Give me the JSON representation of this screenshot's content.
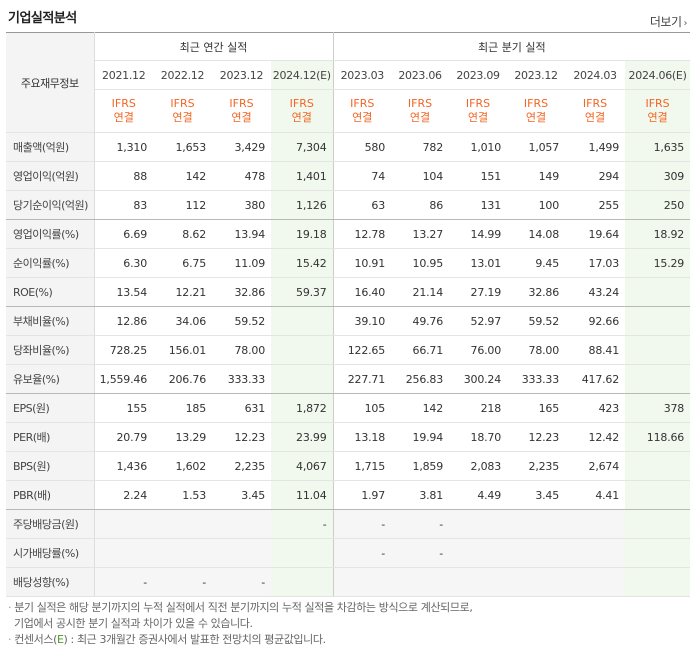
{
  "title": "기업실적분석",
  "more_label": "더보기",
  "header": {
    "row_label": "주요재무정보",
    "annual_group": "최근 연간 실적",
    "quarter_group": "최근 분기 실적",
    "periods": [
      "2021.12",
      "2022.12",
      "2023.12",
      "2024.12(E)",
      "2023.03",
      "2023.06",
      "2023.09",
      "2023.12",
      "2024.03",
      "2024.06(E)"
    ],
    "ifrs": "IFRS",
    "basis": "연결"
  },
  "rows": [
    {
      "label": "매출액(억원)",
      "values": [
        "1,310",
        "1,653",
        "3,429",
        "7,304",
        "580",
        "782",
        "1,010",
        "1,057",
        "1,499",
        "1,635"
      ]
    },
    {
      "label": "영업이익(억원)",
      "values": [
        "88",
        "142",
        "478",
        "1,401",
        "74",
        "104",
        "151",
        "149",
        "294",
        "309"
      ]
    },
    {
      "label": "당기순이익(억원)",
      "values": [
        "83",
        "112",
        "380",
        "1,126",
        "63",
        "86",
        "131",
        "100",
        "255",
        "250"
      ]
    },
    {
      "label": "영업이익률(%)",
      "values": [
        "6.69",
        "8.62",
        "13.94",
        "19.18",
        "12.78",
        "13.27",
        "14.99",
        "14.08",
        "19.64",
        "18.92"
      ]
    },
    {
      "label": "순이익률(%)",
      "values": [
        "6.30",
        "6.75",
        "11.09",
        "15.42",
        "10.91",
        "10.95",
        "13.01",
        "9.45",
        "17.03",
        "15.29"
      ]
    },
    {
      "label": "ROE(%)",
      "values": [
        "13.54",
        "12.21",
        "32.86",
        "59.37",
        "16.40",
        "21.14",
        "27.19",
        "32.86",
        "43.24",
        ""
      ]
    },
    {
      "label": "부채비율(%)",
      "values": [
        "12.86",
        "34.06",
        "59.52",
        "",
        "39.10",
        "49.76",
        "52.97",
        "59.52",
        "92.66",
        ""
      ]
    },
    {
      "label": "당좌비율(%)",
      "values": [
        "728.25",
        "156.01",
        "78.00",
        "",
        "122.65",
        "66.71",
        "76.00",
        "78.00",
        "88.41",
        ""
      ]
    },
    {
      "label": "유보율(%)",
      "values": [
        "1,559.46",
        "206.76",
        "333.33",
        "",
        "227.71",
        "256.83",
        "300.24",
        "333.33",
        "417.62",
        ""
      ]
    },
    {
      "label": "EPS(원)",
      "values": [
        "155",
        "185",
        "631",
        "1,872",
        "105",
        "142",
        "218",
        "165",
        "423",
        "378"
      ]
    },
    {
      "label": "PER(배)",
      "values": [
        "20.79",
        "13.29",
        "12.23",
        "23.99",
        "13.18",
        "19.94",
        "18.70",
        "12.23",
        "12.42",
        "118.66"
      ]
    },
    {
      "label": "BPS(원)",
      "values": [
        "1,436",
        "1,602",
        "2,235",
        "4,067",
        "1,715",
        "1,859",
        "2,083",
        "2,235",
        "2,674",
        ""
      ]
    },
    {
      "label": "PBR(배)",
      "values": [
        "2.24",
        "1.53",
        "3.45",
        "11.04",
        "1.97",
        "3.81",
        "4.49",
        "3.45",
        "4.41",
        ""
      ]
    },
    {
      "label": "주당배당금(원)",
      "values": [
        "",
        "",
        "",
        "-",
        "-",
        "-",
        "",
        "",
        "",
        ""
      ]
    },
    {
      "label": "시가배당률(%)",
      "values": [
        "",
        "",
        "",
        "",
        "-",
        "-",
        "",
        "",
        "",
        ""
      ]
    },
    {
      "label": "배당성향(%)",
      "values": [
        "-",
        "-",
        "-",
        "",
        "",
        "",
        "",
        "",
        "",
        ""
      ]
    }
  ],
  "notes": {
    "line1": "분기 실적은 해당 분기까지의 누적 실적에서 직전 분기까지의 누적 실적을 차감하는 방식으로 계산되므로,",
    "line2": "기업에서 공시한 분기 실적과 차이가 있을 수 있습니다.",
    "line3_prefix": "컨센서스(",
    "line3_e": "E",
    "line3_suffix": ") : 최근 3개월간 증권사에서 발표한 전망치의 평균값입니다."
  },
  "colors": {
    "ifrs": "#f26522",
    "estimate_bg": "#f1f8ee",
    "estimate_text": "#4a9a2a"
  }
}
